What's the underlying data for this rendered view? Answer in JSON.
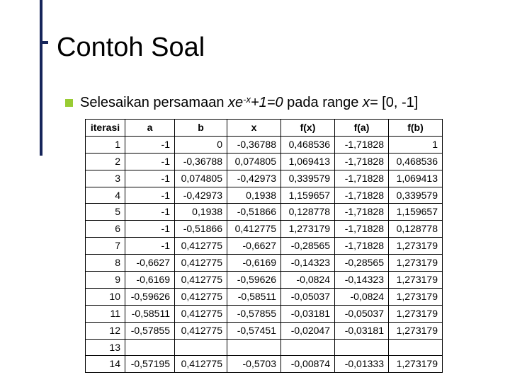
{
  "title": "Contoh Soal",
  "subtitle": {
    "lead": "Selesaikan persamaan ",
    "eq1": "xe",
    "sup": "-x",
    "eq2": "+1=0",
    "mid": " pada range ",
    "eq3": "x= ",
    "tail": "[0, -1]"
  },
  "table": {
    "columns": [
      "iterasi",
      "a",
      "b",
      "x",
      "f(x)",
      "f(a)",
      "f(b)"
    ],
    "col_widths": [
      "col-iter",
      "col-a",
      "col-b",
      "col-x",
      "col-fx",
      "col-fa",
      "col-fb"
    ],
    "rows": [
      [
        "1",
        "-1",
        "0",
        "-0,36788",
        "0,468536",
        "-1,71828",
        "1"
      ],
      [
        "2",
        "-1",
        "-0,36788",
        "0,074805",
        "1,069413",
        "-1,71828",
        "0,468536"
      ],
      [
        "3",
        "-1",
        "0,074805",
        "-0,42973",
        "0,339579",
        "-1,71828",
        "1,069413"
      ],
      [
        "4",
        "-1",
        "-0,42973",
        "0,1938",
        "1,159657",
        "-1,71828",
        "0,339579"
      ],
      [
        "5",
        "-1",
        "0,1938",
        "-0,51866",
        "0,128778",
        "-1,71828",
        "1,159657"
      ],
      [
        "6",
        "-1",
        "-0,51866",
        "0,412775",
        "1,273179",
        "-1,71828",
        "0,128778"
      ],
      [
        "7",
        "-1",
        "0,412775",
        "-0,6627",
        "-0,28565",
        "-1,71828",
        "1,273179"
      ],
      [
        "8",
        "-0,6627",
        "0,412775",
        "-0,6169",
        "-0,14323",
        "-0,28565",
        "1,273179"
      ],
      [
        "9",
        "-0,6169",
        "0,412775",
        "-0,59626",
        "-0,0824",
        "-0,14323",
        "1,273179"
      ],
      [
        "10",
        "-0,59626",
        "0,412775",
        "-0,58511",
        "-0,05037",
        "-0,0824",
        "1,273179"
      ],
      [
        "11",
        "-0,58511",
        "0,412775",
        "-0,57855",
        "-0,03181",
        "-0,05037",
        "1,273179"
      ],
      [
        "12",
        "-0,57855",
        "0,412775",
        "-0,57451",
        "-0,02047",
        "-0,03181",
        "1,273179"
      ],
      [
        "13",
        "",
        "",
        "",
        "",
        "",
        ""
      ],
      [
        "14",
        "-0,57195",
        "0,412775",
        "-0,5703",
        "-0,00874",
        "-0,01333",
        "1,273179"
      ]
    ]
  }
}
